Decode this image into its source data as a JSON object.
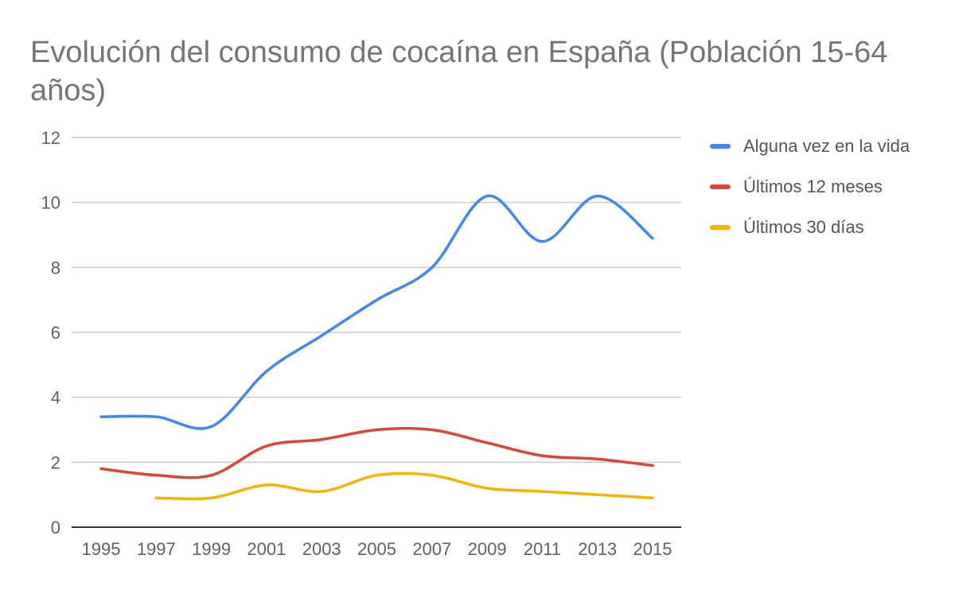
{
  "chart_data": {
    "type": "line",
    "title": "Evolución del consumo de cocaína en España (Población 15-64 años)",
    "xlabel": "",
    "ylabel": "",
    "categories": [
      "1995",
      "1997",
      "1999",
      "2001",
      "2003",
      "2005",
      "2007",
      "2009",
      "2011",
      "2013",
      "2015"
    ],
    "x": [
      1995,
      1997,
      1999,
      2001,
      2003,
      2005,
      2007,
      2009,
      2011,
      2013,
      2015
    ],
    "ylim": [
      0,
      12
    ],
    "yticks": [
      "0",
      "2",
      "4",
      "6",
      "8",
      "10",
      "12"
    ],
    "grid": true,
    "legend_position": "right",
    "series": [
      {
        "name": "Alguna vez en la vida",
        "color": "#4285f4",
        "points": [
          [
            1995,
            3.4
          ],
          [
            1997,
            3.4
          ],
          [
            1999,
            3.1
          ],
          [
            2001,
            4.8
          ],
          [
            2003,
            5.9
          ],
          [
            2005,
            7.0
          ],
          [
            2007,
            8.0
          ],
          [
            2009,
            10.2
          ],
          [
            2011,
            8.8
          ],
          [
            2013,
            10.2
          ],
          [
            2015,
            8.9
          ]
        ]
      },
      {
        "name": "Últimos 12 meses",
        "color": "#db4437",
        "points": [
          [
            1995,
            1.8
          ],
          [
            1997,
            1.6
          ],
          [
            1999,
            1.6
          ],
          [
            2001,
            2.5
          ],
          [
            2003,
            2.7
          ],
          [
            2005,
            3.0
          ],
          [
            2007,
            3.0
          ],
          [
            2009,
            2.6
          ],
          [
            2011,
            2.2
          ],
          [
            2013,
            2.1
          ],
          [
            2015,
            1.9
          ]
        ]
      },
      {
        "name": "Últimos 30 días",
        "color": "#f4b400",
        "points": [
          [
            1997,
            0.9
          ],
          [
            1999,
            0.9
          ],
          [
            2001,
            1.3
          ],
          [
            2003,
            1.1
          ],
          [
            2005,
            1.6
          ],
          [
            2007,
            1.6
          ],
          [
            2009,
            1.2
          ],
          [
            2011,
            1.1
          ],
          [
            2013,
            1.0
          ],
          [
            2015,
            0.9
          ]
        ]
      }
    ]
  }
}
